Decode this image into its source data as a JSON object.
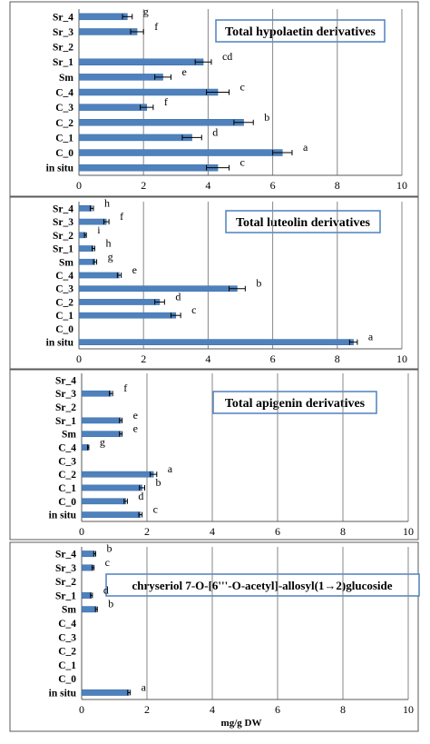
{
  "chart_data": [
    {
      "type": "bar",
      "orientation": "horizontal",
      "title": "Total hypolaetin derivatives",
      "categories": [
        "Sr_4",
        "Sr_3",
        "Sr_2",
        "Sr_1",
        "Sm",
        "C_4",
        "C_3",
        "C_2",
        "C_1",
        "C_0",
        "in situ"
      ],
      "values": [
        1.5,
        1.8,
        0,
        3.85,
        2.6,
        4.3,
        2.1,
        5.1,
        3.5,
        6.3,
        4.3
      ],
      "errors": [
        0.15,
        0.2,
        0,
        0.25,
        0.25,
        0.35,
        0.2,
        0.3,
        0.3,
        0.3,
        0.35
      ],
      "letters": [
        "g",
        "f",
        "",
        "cd",
        "e",
        "c",
        "f",
        "b",
        "d",
        "a",
        "c"
      ],
      "xlim": [
        0,
        10
      ],
      "xticks": [
        "0",
        "2",
        "4",
        "6",
        "8",
        "10"
      ],
      "grid": "vertical",
      "colors": {
        "bar": "#4f81bd",
        "grid": "#878787"
      }
    },
    {
      "type": "bar",
      "orientation": "horizontal",
      "title": "Total luteolin derivatives",
      "categories": [
        "Sr_4",
        "Sr_3",
        "Sr_2",
        "Sr_1",
        "Sm",
        "C_4",
        "C_3",
        "C_2",
        "C_1",
        "C_0",
        "in situ"
      ],
      "values": [
        0.4,
        0.85,
        0.2,
        0.45,
        0.5,
        1.25,
        4.9,
        2.5,
        3.0,
        0,
        8.5
      ],
      "errors": [
        0.05,
        0.08,
        0.03,
        0.04,
        0.05,
        0.06,
        0.25,
        0.15,
        0.15,
        0,
        0.12
      ],
      "letters": [
        "h",
        "f",
        "i",
        "h",
        "g",
        "e",
        "b",
        "d",
        "c",
        "",
        "a"
      ],
      "xlim": [
        0,
        10
      ],
      "xticks": [
        "0",
        "2",
        "4",
        "6",
        "8",
        "10"
      ],
      "grid": "vertical",
      "colors": {
        "bar": "#4f81bd",
        "grid": "#878787"
      }
    },
    {
      "type": "bar",
      "orientation": "horizontal",
      "title": "Total apigenin derivatives",
      "categories": [
        "Sr_4",
        "Sr_3",
        "Sr_2",
        "Sr_1",
        "Sm",
        "C_4",
        "C_3",
        "C_2",
        "C_1",
        "C_0",
        "in situ"
      ],
      "values": [
        0,
        0.9,
        0,
        1.2,
        1.2,
        0.2,
        0,
        2.2,
        1.85,
        1.35,
        1.8
      ],
      "errors": [
        0,
        0.05,
        0,
        0.04,
        0.04,
        0.02,
        0,
        0.1,
        0.08,
        0.05,
        0.05
      ],
      "letters": [
        "",
        "f",
        "",
        "e",
        "e",
        "g",
        "",
        "a",
        "b",
        "d",
        "c"
      ],
      "xlim": [
        0,
        10
      ],
      "xticks": [
        "0",
        "2",
        "4",
        "6",
        "8",
        "10"
      ],
      "grid": "vertical",
      "colors": {
        "bar": "#4f81bd",
        "grid": "#878787"
      }
    },
    {
      "type": "bar",
      "orientation": "horizontal",
      "title": "chryseriol 7-O-[6'''-O-acetyl]-allosyl(1→2)glucoside",
      "categories": [
        "Sr_4",
        "Sr_3",
        "Sr_2",
        "Sr_1",
        "Sm",
        "C_4",
        "C_3",
        "C_2",
        "C_1",
        "C_0",
        "in situ"
      ],
      "values": [
        0.4,
        0.35,
        0,
        0.3,
        0.45,
        0,
        0,
        0,
        0,
        0,
        1.45
      ],
      "errors": [
        0.03,
        0.03,
        0,
        0.03,
        0.03,
        0,
        0,
        0,
        0,
        0,
        0.04
      ],
      "letters": [
        "b",
        "c",
        "",
        "d",
        "b",
        "",
        "",
        "",
        "",
        "",
        "a"
      ],
      "xlim": [
        0,
        10
      ],
      "xticks": [
        "0",
        "2",
        "4",
        "6",
        "8",
        "10"
      ],
      "xlabel": "mg/g DW",
      "grid": "vertical",
      "colors": {
        "bar": "#4f81bd",
        "grid": "#878787"
      }
    }
  ]
}
